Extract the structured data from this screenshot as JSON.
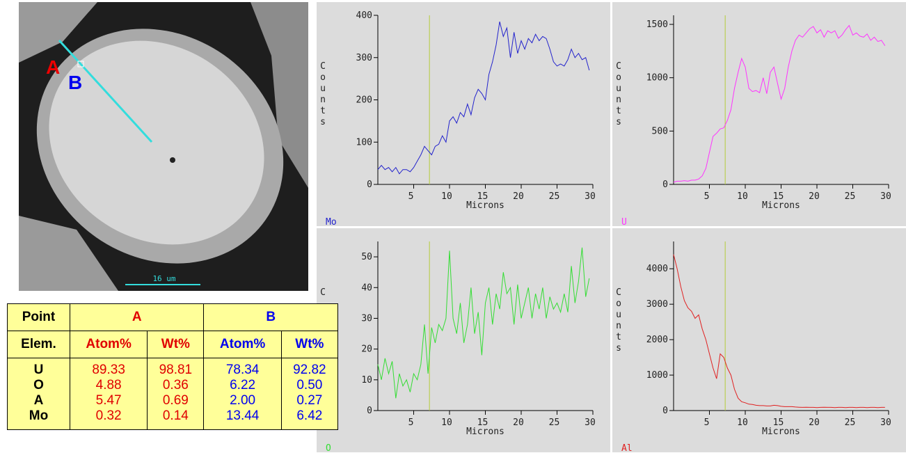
{
  "image": {
    "labels": {
      "a": "A",
      "b": "B"
    },
    "scale_bar": "16 um"
  },
  "table": {
    "header": [
      "Point",
      "A",
      "B"
    ],
    "subheader": [
      "Elem.",
      "Atom%",
      "Wt%",
      "Atom%",
      "Wt%"
    ],
    "rows": [
      [
        "U",
        "89.33",
        "98.81",
        "78.34",
        "92.82"
      ],
      [
        "O",
        "4.88",
        "0.36",
        "6.22",
        "0.50"
      ],
      [
        "A",
        "5.47",
        "0.69",
        "2.00",
        "0.27"
      ],
      [
        "Mo",
        "0.32",
        "0.14",
        "13.44",
        "6.42"
      ]
    ]
  },
  "chart_data": [
    {
      "type": "line",
      "y_label": "Counts",
      "x_label": "Microns",
      "cursor_x": 7.2,
      "xlim": [
        0,
        30
      ],
      "xticks": [
        5,
        10,
        15,
        20,
        25,
        30
      ],
      "ylim": [
        0,
        400
      ],
      "yticks": [
        0,
        100,
        200,
        300,
        400
      ],
      "x": [
        0,
        0.5,
        1,
        1.5,
        2,
        2.5,
        3,
        3.5,
        4,
        4.5,
        5,
        5.5,
        6,
        6.5,
        7,
        7.5,
        8,
        8.5,
        9,
        9.5,
        10,
        10.5,
        11,
        11.5,
        12,
        12.5,
        13,
        13.5,
        14,
        14.5,
        15,
        15.5,
        16,
        16.5,
        17,
        17.5,
        18,
        18.5,
        19,
        19.5,
        20,
        20.5,
        21,
        21.5,
        22,
        22.5,
        23,
        23.5,
        24,
        24.5,
        25,
        25.5,
        26,
        26.5,
        27,
        27.5,
        28,
        28.5,
        29,
        29.5
      ],
      "series": [
        {
          "name": "Mo",
          "color": "#2222cc",
          "values": [
            35,
            45,
            35,
            40,
            30,
            40,
            25,
            35,
            35,
            30,
            40,
            55,
            70,
            90,
            80,
            70,
            90,
            95,
            115,
            100,
            150,
            160,
            145,
            170,
            160,
            190,
            165,
            205,
            225,
            215,
            200,
            260,
            290,
            330,
            385,
            350,
            370,
            300,
            360,
            310,
            340,
            320,
            345,
            335,
            355,
            340,
            350,
            345,
            320,
            290,
            280,
            285,
            280,
            295,
            320,
            300,
            310,
            295,
            300,
            270
          ]
        }
      ]
    },
    {
      "type": "line",
      "y_label": "Counts",
      "x_label": "Microns",
      "cursor_x": 7.2,
      "xlim": [
        0,
        30
      ],
      "xticks": [
        5,
        10,
        15,
        20,
        25,
        30
      ],
      "ylim": [
        0,
        1585
      ],
      "yticks": [
        0,
        500,
        1000,
        1500
      ],
      "x": [
        0,
        0.5,
        1,
        1.5,
        2,
        2.5,
        3,
        3.5,
        4,
        4.5,
        5,
        5.5,
        6,
        6.5,
        7,
        7.5,
        8,
        8.5,
        9,
        9.5,
        10,
        10.5,
        11,
        11.5,
        12,
        12.5,
        13,
        13.5,
        14,
        14.5,
        15,
        15.5,
        16,
        16.5,
        17,
        17.5,
        18,
        18.5,
        19,
        19.5,
        20,
        20.5,
        21,
        21.5,
        22,
        22.5,
        23,
        23.5,
        24,
        24.5,
        25,
        25.5,
        26,
        26.5,
        27,
        27.5,
        28,
        28.5,
        29,
        29.5
      ],
      "series": [
        {
          "name": "U",
          "color": "#ff33ff",
          "values": [
            20,
            30,
            30,
            35,
            30,
            40,
            40,
            50,
            80,
            150,
            300,
            450,
            480,
            520,
            530,
            600,
            700,
            900,
            1050,
            1180,
            1100,
            900,
            870,
            880,
            860,
            1000,
            850,
            1050,
            1100,
            950,
            800,
            900,
            1100,
            1250,
            1350,
            1400,
            1380,
            1420,
            1460,
            1480,
            1420,
            1450,
            1380,
            1440,
            1420,
            1440,
            1370,
            1400,
            1450,
            1490,
            1400,
            1420,
            1390,
            1380,
            1410,
            1350,
            1380,
            1340,
            1350,
            1300
          ]
        }
      ]
    },
    {
      "type": "line",
      "y_label": "C",
      "x_label": "Microns",
      "cursor_x": 7.2,
      "xlim": [
        0,
        30
      ],
      "xticks": [
        5,
        10,
        15,
        20,
        25,
        30
      ],
      "ylim": [
        0,
        55
      ],
      "yticks": [
        0,
        10,
        20,
        30,
        40,
        50
      ],
      "x": [
        0,
        0.5,
        1,
        1.5,
        2,
        2.5,
        3,
        3.5,
        4,
        4.5,
        5,
        5.5,
        6,
        6.5,
        7,
        7.5,
        8,
        8.5,
        9,
        9.5,
        10,
        10.5,
        11,
        11.5,
        12,
        12.5,
        13,
        13.5,
        14,
        14.5,
        15,
        15.5,
        16,
        16.5,
        17,
        17.5,
        18,
        18.5,
        19,
        19.5,
        20,
        20.5,
        21,
        21.5,
        22,
        22.5,
        23,
        23.5,
        24,
        24.5,
        25,
        25.5,
        26,
        26.5,
        27,
        27.5,
        28,
        28.5,
        29,
        29.5
      ],
      "series": [
        {
          "name": "O",
          "color": "#33dd33",
          "values": [
            15,
            10,
            17,
            12,
            16,
            4,
            12,
            8,
            10,
            6,
            12,
            10,
            15,
            28,
            12,
            27,
            22,
            28,
            26,
            30,
            52,
            30,
            25,
            35,
            22,
            28,
            40,
            25,
            32,
            18,
            35,
            40,
            28,
            38,
            33,
            45,
            38,
            40,
            28,
            41,
            30,
            35,
            40,
            30,
            38,
            33,
            40,
            30,
            37,
            33,
            35,
            32,
            38,
            32,
            47,
            35,
            42,
            53,
            37,
            43
          ]
        }
      ]
    },
    {
      "type": "line",
      "y_label": "Counts",
      "x_label": "Microns",
      "cursor_x": 7.2,
      "xlim": [
        0,
        30
      ],
      "xticks": [
        5,
        10,
        15,
        20,
        25,
        30
      ],
      "ylim": [
        0,
        4770
      ],
      "yticks": [
        0,
        1000,
        2000,
        3000,
        4000
      ],
      "x": [
        0,
        0.5,
        1,
        1.5,
        2,
        2.5,
        3,
        3.5,
        4,
        4.5,
        5,
        5.5,
        6,
        6.5,
        7,
        7.5,
        8,
        8.5,
        9,
        9.5,
        10,
        10.5,
        11,
        11.5,
        12,
        12.5,
        13,
        13.5,
        14,
        14.5,
        15,
        15.5,
        16,
        16.5,
        17,
        17.5,
        18,
        18.5,
        19,
        19.5,
        20,
        20.5,
        21,
        21.5,
        22,
        22.5,
        23,
        23.5,
        24,
        24.5,
        25,
        25.5,
        26,
        26.5,
        27,
        27.5,
        28,
        28.5,
        29,
        29.5
      ],
      "series": [
        {
          "name": "Al",
          "color": "#e02020",
          "values": [
            4400,
            4000,
            3500,
            3100,
            2900,
            2800,
            2600,
            2700,
            2300,
            2000,
            1600,
            1200,
            900,
            1600,
            1500,
            1200,
            1000,
            600,
            350,
            250,
            220,
            180,
            170,
            150,
            140,
            140,
            130,
            130,
            150,
            140,
            120,
            110,
            110,
            110,
            100,
            95,
            90,
            95,
            90,
            90,
            85,
            90,
            95,
            90,
            90,
            85,
            90,
            90,
            85,
            90,
            90,
            85,
            90,
            90,
            85,
            90,
            90,
            85,
            90,
            90
          ]
        }
      ]
    }
  ]
}
